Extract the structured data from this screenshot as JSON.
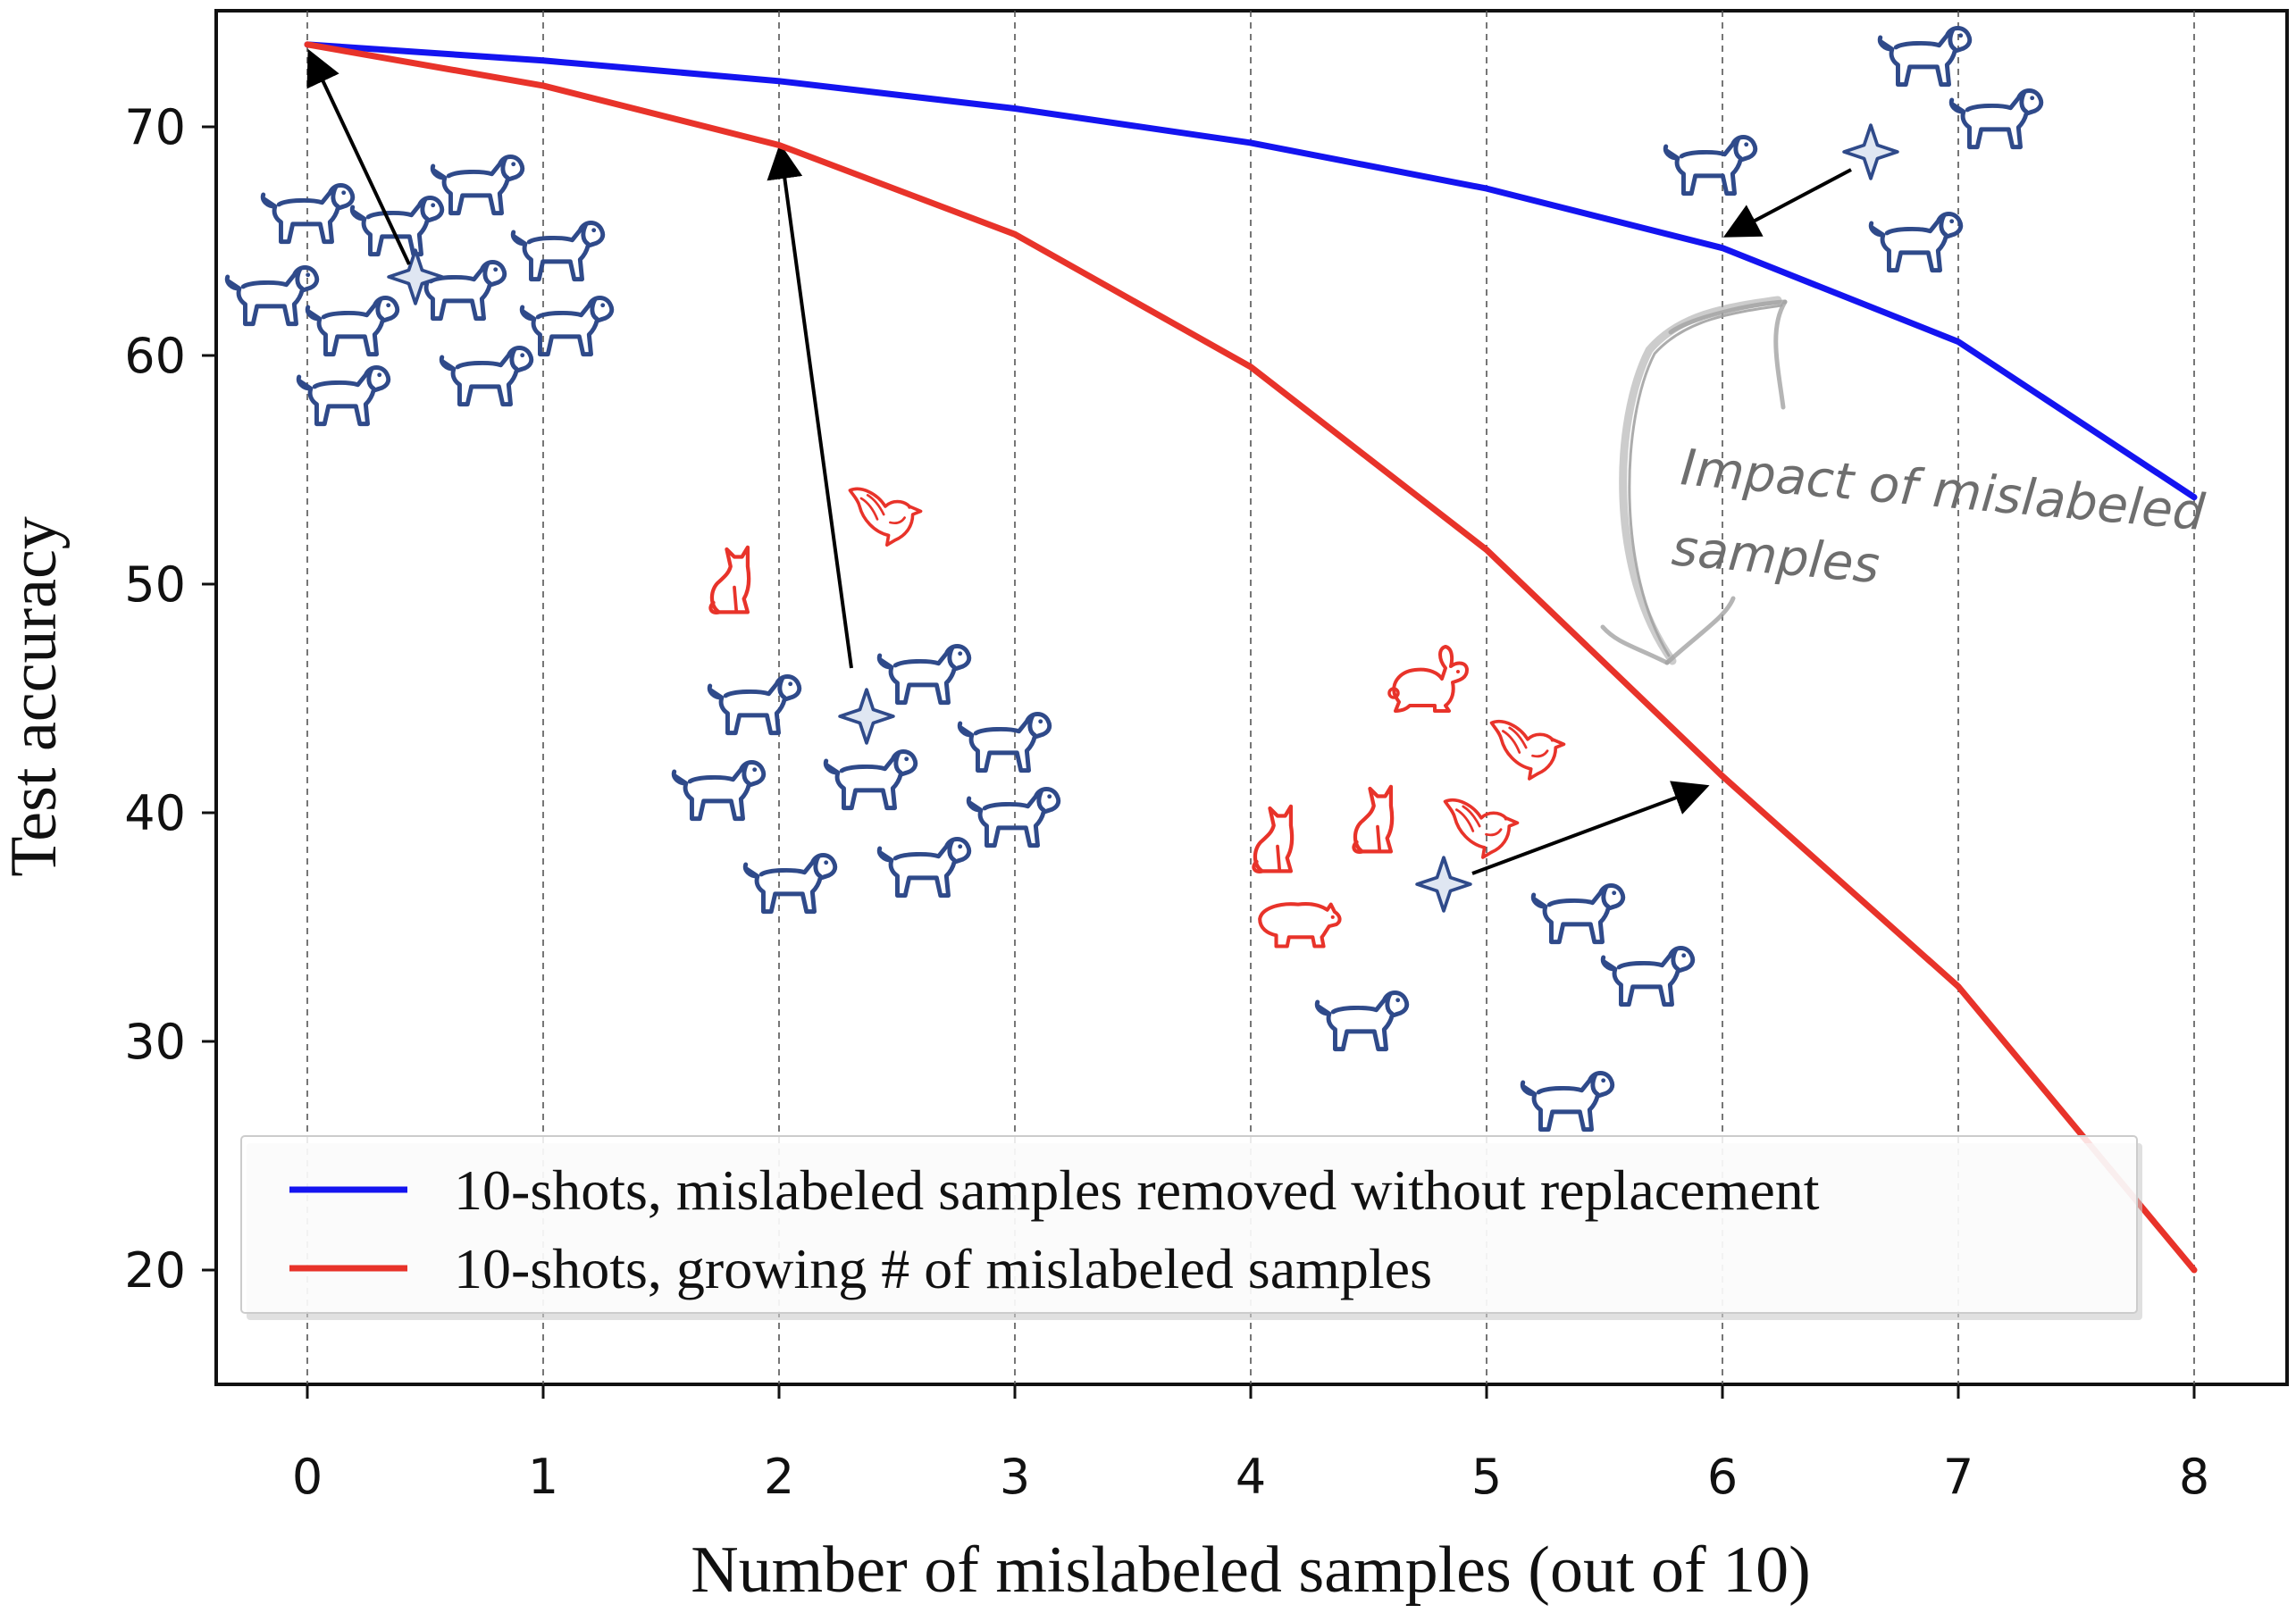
{
  "chart_data": {
    "type": "line",
    "title": "",
    "xlabel": "Number of mislabeled samples (out of 10)",
    "ylabel": "Test accuracy",
    "x": [
      0,
      1,
      2,
      3,
      4,
      5,
      6,
      7,
      8
    ],
    "xlim": [
      -0.4,
      8.2
    ],
    "ylim": [
      15,
      75
    ],
    "xticks": [
      0,
      1,
      2,
      3,
      4,
      5,
      6,
      7,
      8
    ],
    "yticks": [
      20,
      30,
      40,
      50,
      60,
      70
    ],
    "grid": "vertical dashed lines at x ticks",
    "legend_position": "lower-left",
    "series": [
      {
        "name": "10-shots, mislabeled samples removed without replacement",
        "color": "#1414f0",
        "values": [
          73.6,
          72.9,
          72.0,
          70.8,
          69.3,
          67.3,
          64.7,
          60.6,
          53.8
        ]
      },
      {
        "name": "10-shots, growing # of mislabeled samples",
        "color": "#e8332a",
        "values": [
          73.6,
          71.8,
          69.2,
          65.3,
          59.5,
          51.5,
          41.6,
          32.4,
          20.0
        ]
      }
    ],
    "annotations": [
      {
        "text": "Impact of mislabeled",
        "id": "impact-line1"
      },
      {
        "text": "samples",
        "id": "impact-line2"
      }
    ]
  }
}
